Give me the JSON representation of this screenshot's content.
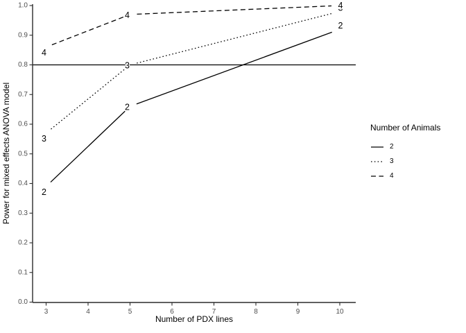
{
  "chart_data": {
    "type": "line",
    "title": "",
    "xlabel": "Number of PDX lines",
    "ylabel": "Power for mixed effects ANOVA model",
    "x": [
      3,
      5,
      10
    ],
    "series": [
      {
        "name": "2",
        "linestyle": "solid",
        "values": [
          0.39,
          0.66,
          0.92
        ]
      },
      {
        "name": "3",
        "linestyle": "dotted",
        "values": [
          0.57,
          0.8,
          0.98
        ]
      },
      {
        "name": "4",
        "linestyle": "dashed",
        "values": [
          0.86,
          0.97,
          1.0
        ]
      }
    ],
    "point_labels": "each data point is annotated with its series name (number of animals)",
    "reference_line_y": 0.8,
    "xlim": [
      3,
      10
    ],
    "ylim": [
      0.0,
      1.0
    ],
    "x_ticks": [
      "3",
      "4",
      "5",
      "6",
      "7",
      "8",
      "9",
      "10"
    ],
    "y_ticks": [
      "0.0",
      "0.1",
      "0.2",
      "0.3",
      "0.4",
      "0.5",
      "0.6",
      "0.7",
      "0.8",
      "0.9",
      "1.0"
    ],
    "grid": false,
    "legend_position": "right"
  },
  "legend": {
    "title": "Number of Animals",
    "items": [
      {
        "label": "2",
        "linestyle": "solid"
      },
      {
        "label": "3",
        "linestyle": "dotted"
      },
      {
        "label": "4",
        "linestyle": "dashed"
      }
    ]
  },
  "colors": {
    "line": "#000000",
    "axis": "#2b2b2b",
    "tick_label": "#4d4d4d",
    "text": "#000000",
    "background": "#ffffff"
  }
}
